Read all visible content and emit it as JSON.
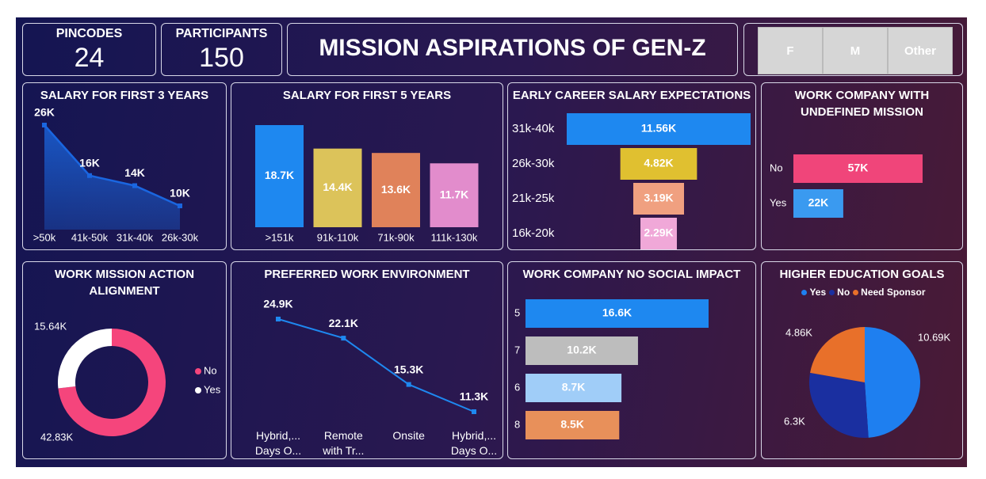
{
  "title": "MISSION ASPIRATIONS OF GEN-Z",
  "kpis": [
    {
      "label": "PINCODES",
      "value": 24
    },
    {
      "label": "PARTICIPANTS",
      "value": 150
    }
  ],
  "slicer": {
    "options": [
      "F",
      "M",
      "Other"
    ]
  },
  "chart_data": [
    {
      "type": "area",
      "title": "SALARY FOR FIRST 3 YEARS",
      "categories": [
        ">50k",
        "41k-50k",
        "31k-40k",
        "26k-30k"
      ],
      "values": [
        26000,
        16000,
        14000,
        10000
      ],
      "value_labels": [
        "26K",
        "16K",
        "14K",
        "10K"
      ],
      "color": "#1a66e0"
    },
    {
      "type": "bar",
      "title": "SALARY FOR FIRST 5 YEARS",
      "categories": [
        ">151k",
        "91k-110k",
        "71k-90k",
        "111k-130k"
      ],
      "values": [
        18700,
        14400,
        13600,
        11700
      ],
      "value_labels": [
        "18.7K",
        "14.4K",
        "13.6K",
        "11.7K"
      ],
      "colors": [
        "#1e88f0",
        "#dcc35a",
        "#e0825a",
        "#e28ccc"
      ]
    },
    {
      "type": "funnel",
      "title": "EARLY CAREER SALARY EXPECTATIONS",
      "categories": [
        "31k-40k",
        "26k-30k",
        "21k-25k",
        "16k-20k"
      ],
      "values": [
        11560,
        4820,
        3190,
        2290
      ],
      "value_labels": [
        "11.56K",
        "4.82K",
        "3.19K",
        "2.29K"
      ],
      "colors": [
        "#1e88f0",
        "#e0c030",
        "#f0a080",
        "#f0a8d8"
      ]
    },
    {
      "type": "hbar",
      "title": "WORK COMPANY WITH UNDEFINED MISSION",
      "categories": [
        "No",
        "Yes"
      ],
      "values": [
        57000,
        22000
      ],
      "value_labels": [
        "57K",
        "22K"
      ],
      "colors": [
        "#f0457a",
        "#3a9af0"
      ]
    },
    {
      "type": "donut",
      "title": "WORK MISSION ACTION ALIGNMENT",
      "categories": [
        "No",
        "Yes"
      ],
      "values": [
        42830,
        15640
      ],
      "value_labels": [
        "42.83K",
        "15.64K"
      ],
      "colors": [
        "#f5457c",
        "#ffffff"
      ],
      "legend": "right"
    },
    {
      "type": "line",
      "title": "PREFERRED WORK ENVIRONMENT",
      "categories": [
        "Hybrid,... Days O...",
        "Remote with Tr...",
        "Onsite",
        "Hybrid,... Days O..."
      ],
      "values": [
        24900,
        22100,
        15300,
        11300
      ],
      "value_labels": [
        "24.9K",
        "22.1K",
        "15.3K",
        "11.3K"
      ],
      "color": "#1e88f0"
    },
    {
      "type": "hbar",
      "title": "WORK COMPANY NO SOCIAL IMPACT",
      "categories": [
        "5",
        "7",
        "6",
        "8"
      ],
      "values": [
        16600,
        10200,
        8700,
        8500
      ],
      "value_labels": [
        "16.6K",
        "10.2K",
        "8.7K",
        "8.5K"
      ],
      "colors": [
        "#1e88f0",
        "#bdbdbd",
        "#a0cdf8",
        "#e8905a"
      ]
    },
    {
      "type": "pie",
      "title": "HIGHER EDUCATION GOALS",
      "categories": [
        "Yes",
        "No",
        "Need Sponsor"
      ],
      "values": [
        10690,
        6300,
        4860
      ],
      "value_labels": [
        "10.69K",
        "6.3K",
        "4.86K"
      ],
      "colors": [
        "#1e7ff0",
        "#1a2fa0",
        "#e8702a"
      ],
      "legend": "top"
    }
  ]
}
